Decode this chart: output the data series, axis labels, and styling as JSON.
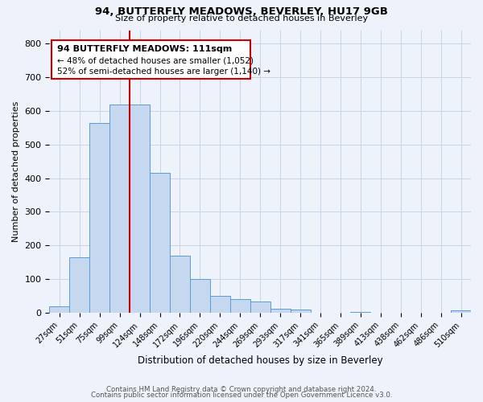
{
  "title": "94, BUTTERFLY MEADOWS, BEVERLEY, HU17 9GB",
  "subtitle": "Size of property relative to detached houses in Beverley",
  "xlabel": "Distribution of detached houses by size in Beverley",
  "ylabel": "Number of detached properties",
  "bar_labels": [
    "27sqm",
    "51sqm",
    "75sqm",
    "99sqm",
    "124sqm",
    "148sqm",
    "172sqm",
    "196sqm",
    "220sqm",
    "244sqm",
    "269sqm",
    "293sqm",
    "317sqm",
    "341sqm",
    "365sqm",
    "389sqm",
    "413sqm",
    "438sqm",
    "462sqm",
    "486sqm",
    "510sqm"
  ],
  "bar_values": [
    20,
    165,
    565,
    620,
    620,
    415,
    170,
    100,
    50,
    40,
    33,
    12,
    10,
    0,
    0,
    3,
    0,
    0,
    0,
    0,
    8
  ],
  "bar_color": "#c5d8f0",
  "bar_edge_color": "#5b9bd5",
  "vline_x": 3.5,
  "vline_color": "#cc0000",
  "annotation_title": "94 BUTTERFLY MEADOWS: 111sqm",
  "annotation_line1": "← 48% of detached houses are smaller (1,052)",
  "annotation_line2": "52% of semi-detached houses are larger (1,140) →",
  "annotation_box_color": "#cc0000",
  "ylim": [
    0,
    840
  ],
  "yticks": [
    0,
    100,
    200,
    300,
    400,
    500,
    600,
    700,
    800
  ],
  "footer1": "Contains HM Land Registry data © Crown copyright and database right 2024.",
  "footer2": "Contains public sector information licensed under the Open Government Licence v3.0.",
  "background_color": "#eef2fa",
  "grid_color": "#c8d4e8"
}
